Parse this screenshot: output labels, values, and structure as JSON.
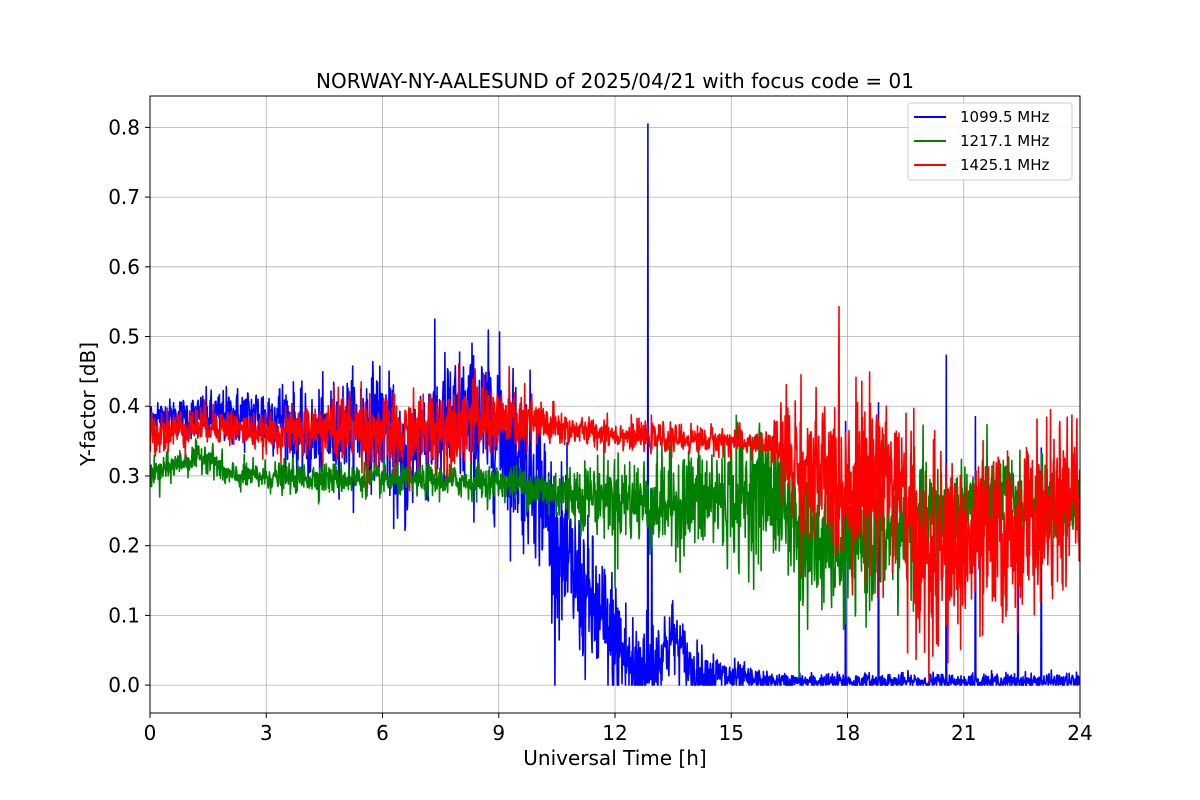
{
  "chart_data": {
    "type": "line",
    "title": "NORWAY-NY-AALESUND of 2025/04/21 with focus code = 01",
    "xlabel": "Universal Time [h]",
    "ylabel": "Y-factor [dB]",
    "xlim": [
      0,
      24
    ],
    "ylim": [
      -0.04,
      0.845
    ],
    "xticks": [
      0,
      3,
      6,
      9,
      12,
      15,
      18,
      21,
      24
    ],
    "yticks": [
      0.0,
      0.1,
      0.2,
      0.3,
      0.4,
      0.5,
      0.6,
      0.7,
      0.8
    ],
    "xtick_labels": [
      "0",
      "3",
      "6",
      "9",
      "12",
      "15",
      "18",
      "21",
      "24"
    ],
    "ytick_labels": [
      "0.0",
      "0.1",
      "0.2",
      "0.3",
      "0.4",
      "0.5",
      "0.6",
      "0.7",
      "0.8"
    ],
    "grid": true,
    "legend_position": "top-right",
    "series": [
      {
        "name": "1099.5 MHz",
        "color": "#0000ff",
        "profile": [
          [
            0,
            0.385
          ],
          [
            3.5,
            0.385
          ],
          [
            4.0,
            0.35
          ],
          [
            5.0,
            0.37
          ],
          [
            6.0,
            0.38
          ],
          [
            6.5,
            0.3
          ],
          [
            7.0,
            0.36
          ],
          [
            8.0,
            0.38
          ],
          [
            9.0,
            0.37
          ],
          [
            9.5,
            0.33
          ],
          [
            10.0,
            0.3
          ],
          [
            10.5,
            0.2
          ],
          [
            11.0,
            0.15
          ],
          [
            11.5,
            0.1
          ],
          [
            12.0,
            0.06
          ],
          [
            12.5,
            0.02
          ],
          [
            13.0,
            0.03
          ],
          [
            13.5,
            0.07
          ],
          [
            14.0,
            0.02
          ],
          [
            15.0,
            0.01
          ],
          [
            16.0,
            0.005
          ],
          [
            24.0,
            0.005
          ]
        ],
        "noise": [
          [
            0,
            0.01
          ],
          [
            4.0,
            0.03
          ],
          [
            9.5,
            0.06
          ],
          [
            12.0,
            0.05
          ],
          [
            14.0,
            0.02
          ],
          [
            16.0,
            0.006
          ],
          [
            24.0,
            0.006
          ]
        ],
        "spikes": [
          [
            0.2,
            0.405
          ],
          [
            12.85,
            0.805
          ],
          [
            18.8,
            0.405
          ],
          [
            20.55,
            0.473
          ],
          [
            21.3,
            0.385
          ],
          [
            17.95,
            0.378
          ],
          [
            23.0,
            0.34
          ],
          [
            22.4,
            0.27
          ],
          [
            12.95,
            0.28
          ]
        ]
      },
      {
        "name": "1217.1 MHz",
        "color": "#008000",
        "profile": [
          [
            0,
            0.3
          ],
          [
            0.8,
            0.32
          ],
          [
            1.5,
            0.33
          ],
          [
            2.0,
            0.3
          ],
          [
            9.5,
            0.29
          ],
          [
            10.0,
            0.28
          ],
          [
            12.0,
            0.27
          ],
          [
            13.0,
            0.26
          ],
          [
            15.0,
            0.27
          ],
          [
            16.0,
            0.28
          ],
          [
            16.5,
            0.25
          ],
          [
            17.0,
            0.2
          ],
          [
            18.0,
            0.2
          ],
          [
            19.0,
            0.22
          ],
          [
            20.0,
            0.24
          ],
          [
            21.0,
            0.26
          ],
          [
            22.0,
            0.27
          ],
          [
            23.0,
            0.26
          ],
          [
            24.0,
            0.25
          ]
        ],
        "noise": [
          [
            0,
            0.01
          ],
          [
            9.5,
            0.012
          ],
          [
            12.0,
            0.03
          ],
          [
            16.5,
            0.05
          ],
          [
            19.0,
            0.05
          ],
          [
            21.0,
            0.03
          ],
          [
            24.0,
            0.03
          ]
        ],
        "spikes": [
          [
            16.75,
            0.01
          ],
          [
            15.2,
            0.16
          ],
          [
            12.0,
            0.14
          ],
          [
            17.9,
            0.08
          ],
          [
            19.3,
            0.1
          ],
          [
            0.25,
            0.27
          ],
          [
            4.35,
            0.26
          ]
        ]
      },
      {
        "name": "1425.1 MHz",
        "color": "#ff0000",
        "profile": [
          [
            0,
            0.36
          ],
          [
            1.5,
            0.375
          ],
          [
            3.0,
            0.36
          ],
          [
            5.0,
            0.37
          ],
          [
            6.5,
            0.355
          ],
          [
            8.0,
            0.38
          ],
          [
            9.0,
            0.38
          ],
          [
            10.0,
            0.375
          ],
          [
            11.0,
            0.365
          ],
          [
            12.0,
            0.36
          ],
          [
            13.0,
            0.355
          ],
          [
            15.0,
            0.35
          ],
          [
            16.0,
            0.345
          ],
          [
            16.5,
            0.33
          ],
          [
            17.0,
            0.3
          ],
          [
            18.0,
            0.29
          ],
          [
            19.0,
            0.31
          ],
          [
            19.5,
            0.25
          ],
          [
            20.0,
            0.17
          ],
          [
            20.5,
            0.19
          ],
          [
            21.0,
            0.2
          ],
          [
            22.0,
            0.21
          ],
          [
            23.0,
            0.24
          ],
          [
            24.0,
            0.27
          ]
        ],
        "noise": [
          [
            0,
            0.015
          ],
          [
            3.0,
            0.012
          ],
          [
            5.0,
            0.025
          ],
          [
            8.0,
            0.03
          ],
          [
            10.0,
            0.02
          ],
          [
            11.0,
            0.01
          ],
          [
            16.0,
            0.01
          ],
          [
            16.5,
            0.05
          ],
          [
            19.5,
            0.07
          ],
          [
            24.0,
            0.055
          ]
        ],
        "spikes": [
          [
            5.45,
            0.435
          ],
          [
            8.4,
            0.425
          ],
          [
            11.8,
            0.39
          ],
          [
            20.1,
            0.005
          ],
          [
            0.3,
            0.39
          ],
          [
            18.8,
            0.38
          ]
        ]
      }
    ]
  }
}
